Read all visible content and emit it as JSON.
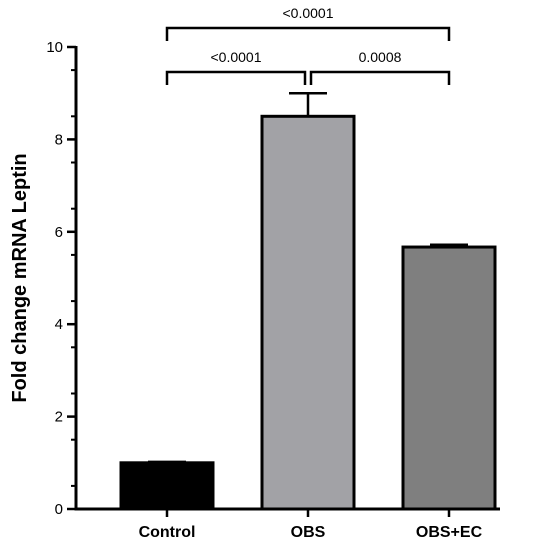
{
  "chart_data": {
    "type": "bar",
    "categories": [
      "Control",
      "OBS",
      "OBS+EC"
    ],
    "values": [
      1.0,
      8.5,
      5.67
    ],
    "errors": [
      0.02,
      0.5,
      0.05
    ],
    "bar_colors": [
      "#000000",
      "#a2a2a6",
      "#7f7f7f"
    ],
    "ylabel": "Fold change mRNA Leptin",
    "xlabel": "",
    "ylim": [
      0,
      10
    ],
    "yticks": [
      0,
      2,
      4,
      6,
      8,
      10
    ],
    "grid": false,
    "comparisons": [
      {
        "from": 0,
        "to": 1,
        "label": "<0.0001"
      },
      {
        "from": 1,
        "to": 2,
        "label": "0.0008"
      },
      {
        "from": 0,
        "to": 2,
        "label": "<0.0001"
      }
    ]
  }
}
